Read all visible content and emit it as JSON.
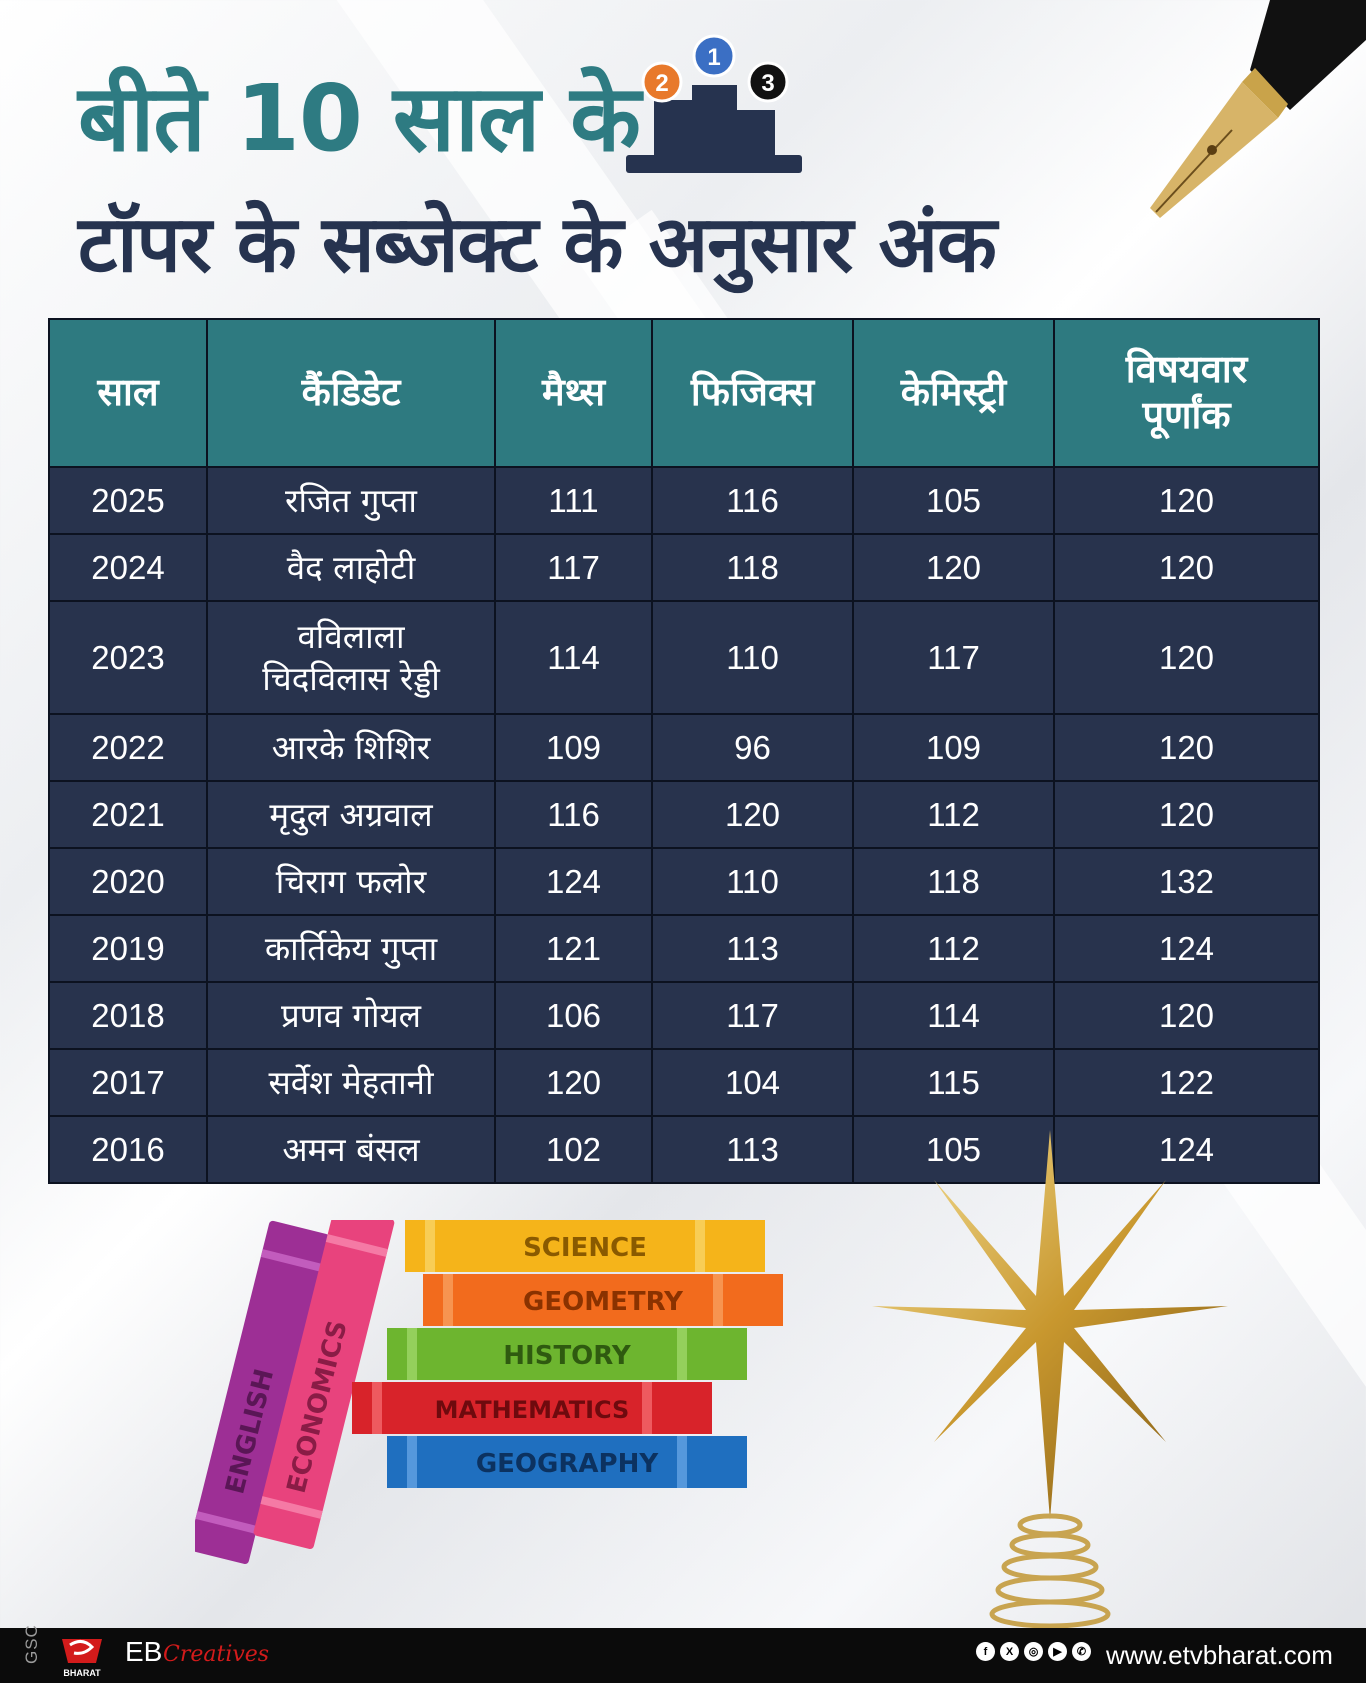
{
  "title": {
    "line1": "बीते 10 साल के",
    "line2": "टॉपर के सब्जेक्ट के अनुसार अंक"
  },
  "podium": {
    "ranks": [
      "2",
      "1",
      "3"
    ]
  },
  "table": {
    "headers": {
      "year": "साल",
      "candidate": "कैंडिडेट",
      "maths": "मैथ्स",
      "physics": "फिजिक्स",
      "chemistry": "केमिस्ट्री",
      "total_line1": "विषयवार",
      "total_line2": "पूर्णांक"
    },
    "rows": [
      {
        "year": "2025",
        "name1": "रजित गुप्ता",
        "name2": "",
        "maths": "111",
        "physics": "116",
        "chemistry": "105",
        "total": "120"
      },
      {
        "year": "2024",
        "name1": "वैद लाहोटी",
        "name2": "",
        "maths": "117",
        "physics": "118",
        "chemistry": "120",
        "total": "120"
      },
      {
        "year": "2023",
        "name1": "वविलाला",
        "name2": "चिदविलास रेड्डी",
        "maths": "114",
        "physics": "110",
        "chemistry": "117",
        "total": "120"
      },
      {
        "year": "2022",
        "name1": "आरके शिशिर",
        "name2": "",
        "maths": "109",
        "physics": "96",
        "chemistry": "109",
        "total": "120"
      },
      {
        "year": "2021",
        "name1": "मृदुल अग्रवाल",
        "name2": "",
        "maths": "116",
        "physics": "120",
        "chemistry": "112",
        "total": "120"
      },
      {
        "year": "2020",
        "name1": "चिराग फलोर",
        "name2": "",
        "maths": "124",
        "physics": "110",
        "chemistry": "118",
        "total": "132"
      },
      {
        "year": "2019",
        "name1": "कार्तिकेय गुप्ता",
        "name2": "",
        "maths": "121",
        "physics": "113",
        "chemistry": "112",
        "total": "124"
      },
      {
        "year": "2018",
        "name1": "प्रणव गोयल",
        "name2": "",
        "maths": "106",
        "physics": "117",
        "chemistry": "114",
        "total": "120"
      },
      {
        "year": "2017",
        "name1": "सर्वेश मेहतानी",
        "name2": "",
        "maths": "120",
        "physics": "104",
        "chemistry": "115",
        "total": "122"
      },
      {
        "year": "2016",
        "name1": "अमन बंसल",
        "name2": "",
        "maths": "102",
        "physics": "113",
        "chemistry": "105",
        "total": "124"
      }
    ]
  },
  "books": {
    "standing": [
      "ENGLISH",
      "ECONOMICS"
    ],
    "stack": [
      "SCIENCE",
      "GEOMETRY",
      "HISTORY",
      "MATHEMATICS",
      "GEOGRAPHY"
    ]
  },
  "footer": {
    "side_text": "GSC",
    "logo_text": "BHARAT",
    "eb": "EB",
    "creatives": "Creatives",
    "website": "www.etvbharat.com",
    "social_icons": [
      "facebook-icon",
      "x-icon",
      "instagram-icon",
      "youtube-icon",
      "whatsapp-icon"
    ]
  },
  "colors": {
    "title_teal": "#2e7b82",
    "title_navy": "#26334f",
    "header_bg": "#2e7a80",
    "row_bg": "#28334d",
    "footer_bg": "#0b0b0b"
  }
}
